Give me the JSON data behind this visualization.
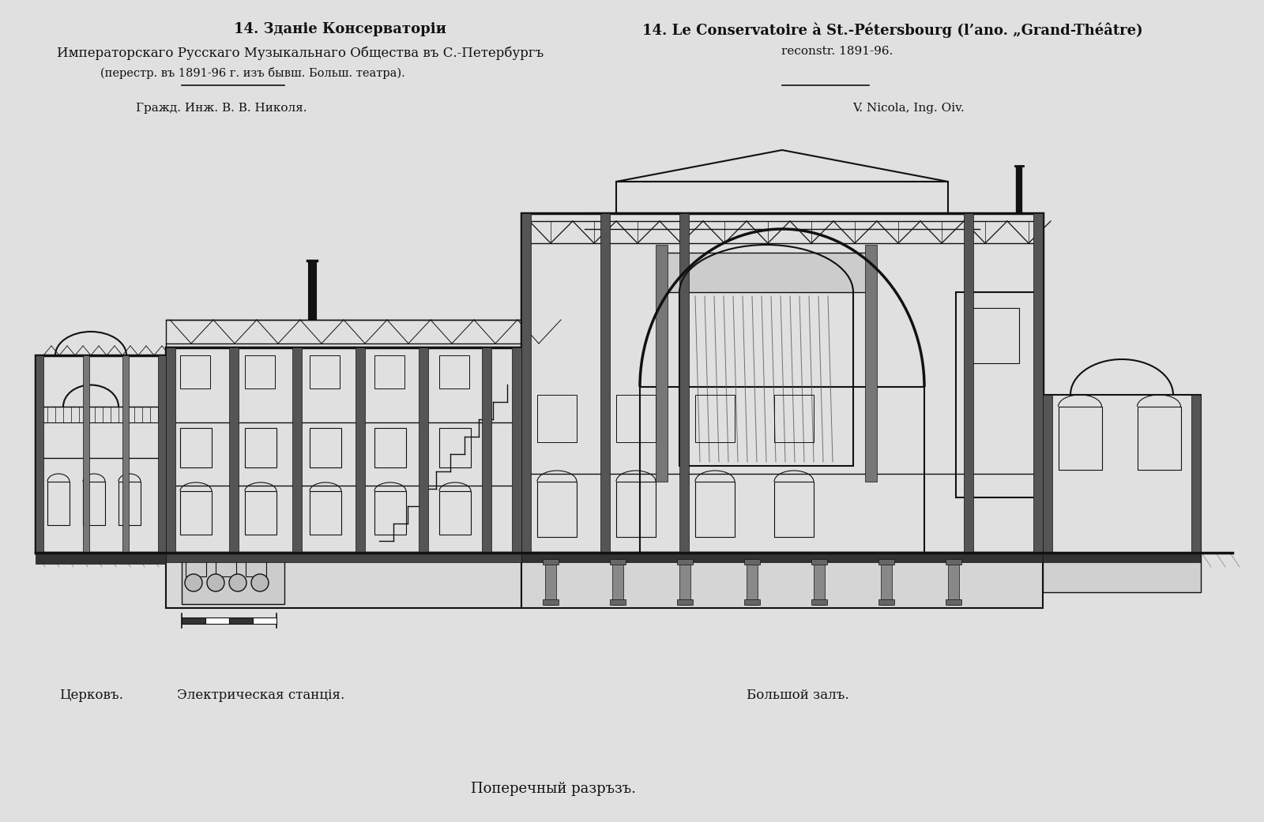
{
  "background_color": "#e0e0e0",
  "fig_width": 16.0,
  "fig_height": 10.41,
  "title_left_line1": "14. Зданіе Консерваторіи",
  "title_left_line2": "Императорскаго Русскаго Музыкальнаго Общества въ С.-Петербургъ",
  "title_left_line3": "(перестр. въ 1891-96 г. изъ бывш. Больш. театра).",
  "title_right_line1": "14. Le Conservatoire à St.-Pétersbourg (l’ano. „Grand-Théâtre)",
  "title_right_line2": "reconstr. 1891-96.",
  "architect_left": "Гражд. Инж. В. В. Николя.",
  "architect_right": "V. Nicola, Ing. Oiv.",
  "label_church": "Церковъ.",
  "label_electric": "Электрическая станція.",
  "label_hall": "Большой залъ.",
  "label_section": "Поперечный разръзъ.",
  "text_color": "#111111"
}
